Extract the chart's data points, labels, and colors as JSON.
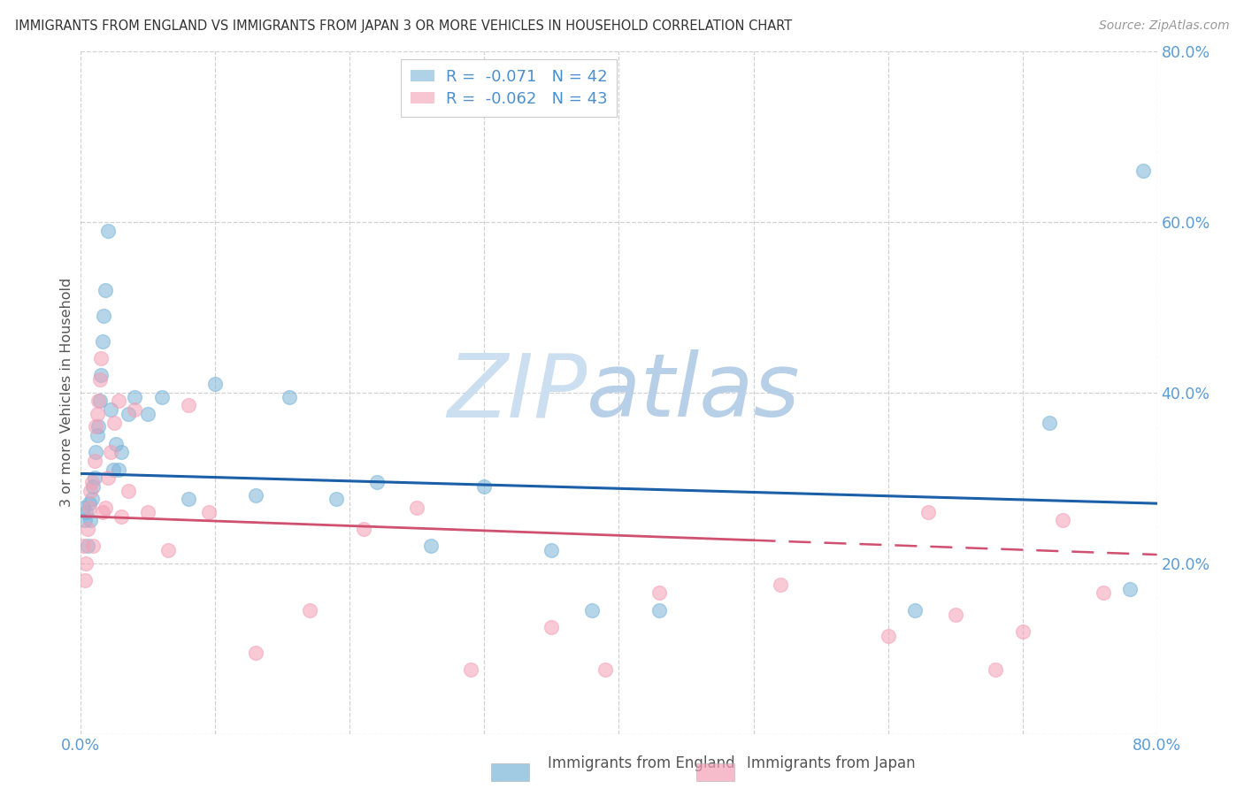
{
  "title": "IMMIGRANTS FROM ENGLAND VS IMMIGRANTS FROM JAPAN 3 OR MORE VEHICLES IN HOUSEHOLD CORRELATION CHART",
  "source": "Source: ZipAtlas.com",
  "ylabel": "3 or more Vehicles in Household",
  "england_color": "#7ab4d8",
  "japan_color": "#f4a0b5",
  "england_R": -0.071,
  "england_N": 42,
  "japan_R": -0.062,
  "japan_N": 43,
  "england_line_y_start": 0.305,
  "england_line_y_end": 0.27,
  "japan_line_y_start": 0.255,
  "japan_line_y_end": 0.21,
  "japan_line_solid_end_x": 0.5,
  "xlim": [
    0.0,
    0.8
  ],
  "ylim": [
    0.0,
    0.8
  ],
  "background_color": "#ffffff",
  "grid_color": "#cccccc",
  "title_color": "#333333",
  "tick_color": "#5b9bd5",
  "watermark_zip_color": "#c8dff0",
  "watermark_atlas_color": "#b8d0e8",
  "legend_england_label": "Immigrants from England",
  "legend_japan_label": "Immigrants from Japan",
  "eng_x": [
    0.002,
    0.003,
    0.004,
    0.005,
    0.006,
    0.007,
    0.008,
    0.009,
    0.01,
    0.011,
    0.012,
    0.013,
    0.014,
    0.015,
    0.016,
    0.017,
    0.018,
    0.02,
    0.022,
    0.024,
    0.026,
    0.028,
    0.03,
    0.035,
    0.04,
    0.05,
    0.06,
    0.08,
    0.1,
    0.13,
    0.155,
    0.19,
    0.22,
    0.26,
    0.3,
    0.35,
    0.38,
    0.43,
    0.62,
    0.72,
    0.78,
    0.79
  ],
  "eng_y": [
    0.265,
    0.25,
    0.26,
    0.22,
    0.27,
    0.25,
    0.275,
    0.29,
    0.3,
    0.33,
    0.35,
    0.36,
    0.39,
    0.42,
    0.46,
    0.49,
    0.52,
    0.59,
    0.38,
    0.31,
    0.34,
    0.31,
    0.33,
    0.375,
    0.395,
    0.375,
    0.395,
    0.275,
    0.41,
    0.28,
    0.395,
    0.275,
    0.295,
    0.22,
    0.29,
    0.215,
    0.145,
    0.145,
    0.145,
    0.365,
    0.17,
    0.66
  ],
  "jpn_x": [
    0.002,
    0.003,
    0.004,
    0.005,
    0.006,
    0.007,
    0.008,
    0.009,
    0.01,
    0.011,
    0.012,
    0.013,
    0.014,
    0.015,
    0.016,
    0.018,
    0.02,
    0.022,
    0.025,
    0.028,
    0.03,
    0.035,
    0.04,
    0.05,
    0.065,
    0.08,
    0.095,
    0.13,
    0.17,
    0.21,
    0.25,
    0.29,
    0.35,
    0.39,
    0.43,
    0.52,
    0.6,
    0.63,
    0.65,
    0.68,
    0.7,
    0.73,
    0.76
  ],
  "jpn_y": [
    0.22,
    0.18,
    0.2,
    0.24,
    0.265,
    0.285,
    0.295,
    0.22,
    0.32,
    0.36,
    0.375,
    0.39,
    0.415,
    0.44,
    0.26,
    0.265,
    0.3,
    0.33,
    0.365,
    0.39,
    0.255,
    0.285,
    0.38,
    0.26,
    0.215,
    0.385,
    0.26,
    0.095,
    0.145,
    0.24,
    0.265,
    0.075,
    0.125,
    0.075,
    0.165,
    0.175,
    0.115,
    0.26,
    0.14,
    0.075,
    0.12,
    0.25,
    0.165
  ]
}
